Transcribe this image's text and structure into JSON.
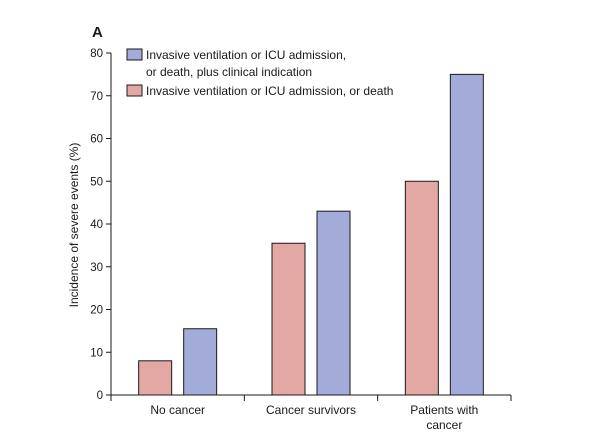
{
  "chart_data": {
    "type": "bar",
    "panel_label": "A",
    "ylabel": "Incidence of severe events (%)",
    "xlabel": "",
    "ylim": [
      0,
      80
    ],
    "yticks": [
      0,
      10,
      20,
      30,
      40,
      50,
      60,
      70,
      80
    ],
    "grid": false,
    "legend_position": "top-left",
    "categories": [
      [
        "No cancer"
      ],
      [
        "Cancer survivors"
      ],
      [
        "Patients with",
        "cancer"
      ]
    ],
    "series": [
      {
        "name": "Invasive ventilation or ICU admission, or death",
        "legend_lines": [
          "Invasive ventilation or ICU admission, or death"
        ],
        "color": "#e3a8a4",
        "values": [
          8,
          35.5,
          50
        ]
      },
      {
        "name": "Invasive ventilation or ICU admission, or death, plus clinical indication",
        "legend_lines": [
          "Invasive ventilation or ICU admission,",
          "or death, plus clinical indication"
        ],
        "color": "#a3acd9",
        "values": [
          15.5,
          43,
          75
        ]
      }
    ],
    "legend_order": [
      1,
      0
    ]
  }
}
